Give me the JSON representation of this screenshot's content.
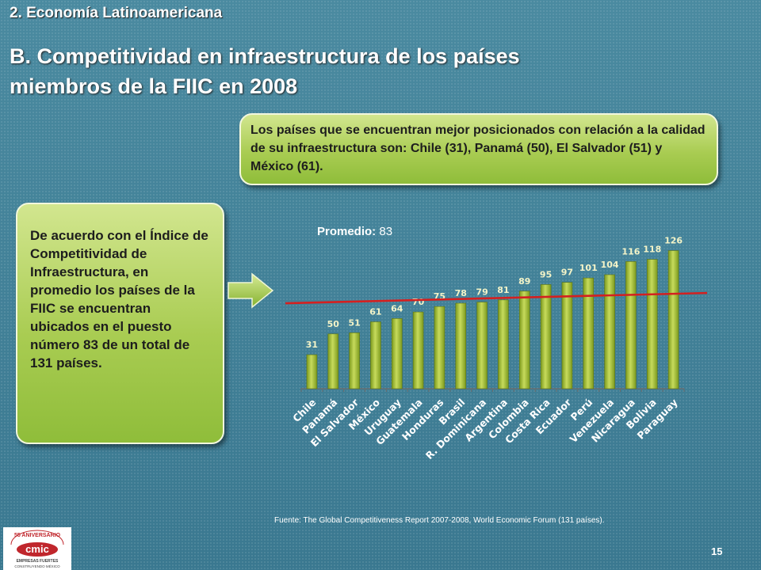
{
  "section_title": "2. Economía Latinoamericana",
  "slide_title": "B. Competitividad en infraestructura de los países miembros de la FIIC en 2008",
  "callout_top": "Los países que se encuentran mejor posicionados con relación a la calidad de su infraestructura son: Chile (31), Panamá (50), El Salvador (51) y México (61).",
  "callout_left": "De acuerdo con el Índice de Competitividad de Infraestructura, en promedio los países de la FIIC se encuentran ubicados en el puesto número 83 de un total de 131 países.",
  "promedio_label": "Promedio:",
  "promedio_value": "83",
  "source": "Fuente: The Global Competitiveness Report 2007-2008, World Economic Forum (131 países).",
  "page_number": "15",
  "logo": {
    "lines": [
      "55 ANIVERSARIO",
      "cmic",
      "EMPRESAS FUERTES",
      "CONSTRUYENDO MÉXICO"
    ]
  },
  "colors": {
    "bar": "#a9c23a",
    "average_line": "#d42020",
    "callout": "#a9cc52"
  },
  "chart_data": {
    "type": "bar",
    "categories": [
      "Chile",
      "Panamá",
      "El Salvador",
      "México",
      "Uruguay",
      "Guatemala",
      "Honduras",
      "Brasil",
      "R. Dominicana",
      "Argentina",
      "Colombia",
      "Costa Rica",
      "Ecuador",
      "Perú",
      "Venezuela",
      "Nicaragua",
      "Bolivia",
      "Paraguay"
    ],
    "values": [
      31,
      50,
      51,
      61,
      64,
      70,
      75,
      78,
      79,
      81,
      89,
      95,
      97,
      101,
      104,
      116,
      118,
      126
    ],
    "average": 83,
    "ylim": [
      0,
      130
    ],
    "grid": false,
    "legend": "none"
  }
}
